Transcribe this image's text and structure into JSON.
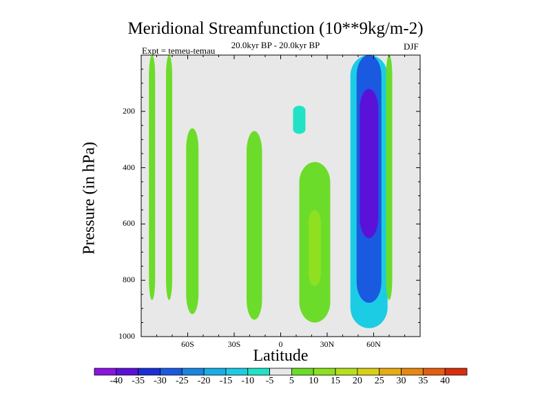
{
  "chart_data": {
    "type": "heatmap",
    "title": "Meridional Streamfunction (10**9kg/m-2)",
    "subtitle": "20.0kyr BP - 20.0kyr BP",
    "left_string": "Expt = temeu-temau",
    "right_string": "DJF",
    "xlabel": "Latitude",
    "ylabel": "Pressure (in hPa)",
    "xlim": [
      -90,
      90
    ],
    "ylim": [
      1000,
      0
    ],
    "x_ticks": [
      -60,
      -30,
      0,
      30,
      60
    ],
    "x_tick_labels": [
      "60S",
      "30S",
      "0",
      "30N",
      "60N"
    ],
    "y_ticks": [
      200,
      400,
      600,
      800,
      1000
    ],
    "y_tick_labels": [
      "200",
      "400",
      "600",
      "800",
      "1000"
    ],
    "background_color": "#e8e8e8",
    "colorbar": {
      "labels": [
        "-40",
        "-35",
        "-30",
        "-25",
        "-20",
        "-15",
        "-10",
        "-5",
        "5",
        "10",
        "15",
        "20",
        "25",
        "30",
        "35",
        "40"
      ],
      "colors": [
        "#8a14e0",
        "#5a12d8",
        "#1a2ed8",
        "#1a5ae0",
        "#1a86e0",
        "#1aaee6",
        "#1ccce4",
        "#22e2c6",
        "#e8e8e8",
        "#6cdc2a",
        "#8ee020",
        "#b4e020",
        "#d8d018",
        "#e6ac14",
        "#e68812",
        "#e25e10",
        "#d82e0e"
      ]
    },
    "regions": [
      {
        "name": "band-75s-upper",
        "lat_center": -83,
        "lat_halfwidth": 2,
        "p_top": 0,
        "p_bottom": 870,
        "value": 5
      },
      {
        "name": "band-75s-right",
        "lat_center": -72,
        "lat_halfwidth": 2,
        "p_top": 0,
        "p_bottom": 870,
        "value": 5
      },
      {
        "name": "band-60s",
        "lat_center": -57,
        "lat_halfwidth": 4,
        "p_top": 260,
        "p_bottom": 920,
        "value": 5
      },
      {
        "name": "band-15s",
        "lat_center": -17,
        "lat_halfwidth": 5,
        "p_top": 270,
        "p_bottom": 940,
        "value": 5
      },
      {
        "name": "upper-eq-cell",
        "lat_center": 12,
        "lat_halfwidth": 12,
        "p_top": 100,
        "p_bottom": 380,
        "value": -5
      },
      {
        "name": "upper-eq-core",
        "lat_center": 12,
        "lat_halfwidth": 4,
        "p_top": 180,
        "p_bottom": 280,
        "value": -10
      },
      {
        "name": "subtropic-nh",
        "lat_center": 22,
        "lat_halfwidth": 10,
        "p_top": 380,
        "p_bottom": 950,
        "value": 5
      },
      {
        "name": "subtropic-nh-core",
        "lat_center": 22,
        "lat_halfwidth": 4,
        "p_top": 550,
        "p_bottom": 820,
        "value": 10
      },
      {
        "name": "midlat-nh-cell",
        "lat_center": 57,
        "lat_halfwidth": 12,
        "p_top": 0,
        "p_bottom": 970,
        "value": -15
      },
      {
        "name": "midlat-nh-core",
        "lat_center": 57,
        "lat_halfwidth": 8,
        "p_top": 0,
        "p_bottom": 880,
        "value": -30
      },
      {
        "name": "midlat-nh-max",
        "lat_center": 57,
        "lat_halfwidth": 6,
        "p_top": 120,
        "p_bottom": 650,
        "value": -40
      },
      {
        "name": "band-70n",
        "lat_center": 70,
        "lat_halfwidth": 2,
        "p_top": 0,
        "p_bottom": 870,
        "value": 5
      }
    ]
  }
}
